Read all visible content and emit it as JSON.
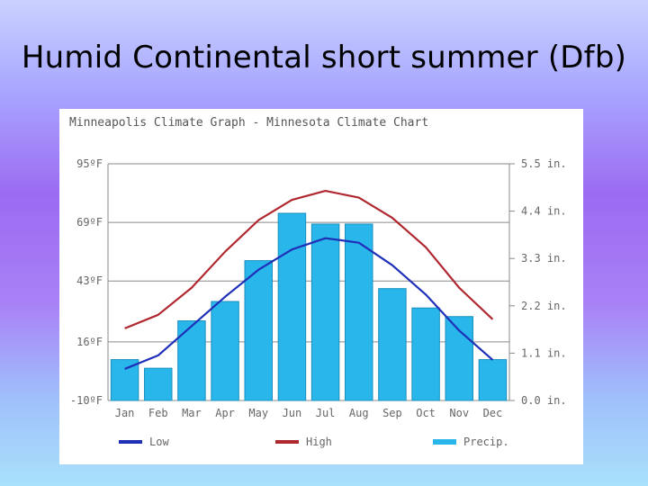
{
  "slide": {
    "title": "Humid Continental short summer (Dfb)"
  },
  "chart_data": {
    "type": "bar+line",
    "title": "Minneapolis Climate Graph - Minnesota Climate Chart",
    "categories": [
      "Jan",
      "Feb",
      "Mar",
      "Apr",
      "May",
      "Jun",
      "Jul",
      "Aug",
      "Sep",
      "Oct",
      "Nov",
      "Dec"
    ],
    "temp_axis": {
      "ticks": [
        "95ºF",
        "69ºF",
        "43ºF",
        "16ºF",
        "-10ºF"
      ],
      "values": [
        95,
        69,
        43,
        16,
        -10
      ],
      "range": [
        -10,
        95
      ]
    },
    "precip_axis": {
      "ticks": [
        "5.5 in.",
        "4.4 in.",
        "3.3 in.",
        "2.2 in.",
        "1.1 in.",
        "0.0 in."
      ],
      "values": [
        5.5,
        4.4,
        3.3,
        2.2,
        1.1,
        0.0
      ],
      "range": [
        0,
        5.5
      ]
    },
    "series": [
      {
        "name": "Precip.",
        "kind": "bar",
        "axis": "precip",
        "color": "#29b6ea",
        "values": [
          0.95,
          0.75,
          1.85,
          2.3,
          3.25,
          4.35,
          4.1,
          4.1,
          2.6,
          2.15,
          1.95,
          0.95
        ]
      },
      {
        "name": "Low",
        "kind": "line",
        "axis": "temp",
        "color": "#1f2fb8",
        "values": [
          4,
          10,
          23,
          36,
          48,
          57,
          62,
          60,
          50,
          37,
          21,
          8
        ]
      },
      {
        "name": "High",
        "kind": "line",
        "axis": "temp",
        "color": "#b0282f",
        "values": [
          22,
          28,
          40,
          56,
          70,
          79,
          83,
          80,
          71,
          58,
          40,
          26
        ]
      }
    ],
    "legend": [
      {
        "label": "Low",
        "color": "#1f2fb8"
      },
      {
        "label": "High",
        "color": "#b0282f"
      },
      {
        "label": "Precip.",
        "color": "#29b6ea"
      }
    ],
    "legend_position": "bottom",
    "grid": true
  }
}
